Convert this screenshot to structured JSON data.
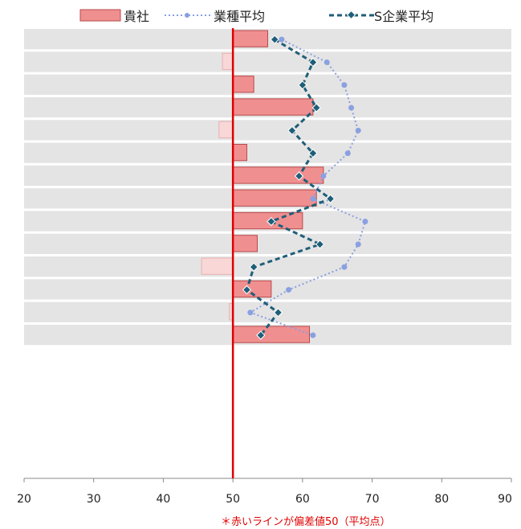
{
  "chart_data": {
    "type": "bar",
    "orientation": "horizontal",
    "xlim": [
      20,
      90
    ],
    "x_ticks": [
      "20",
      "30",
      "40",
      "50",
      "60",
      "70",
      "80",
      "90"
    ],
    "baseline": 50,
    "rows": 14,
    "legend": [
      "貴社",
      "業種平均",
      "S企業平均"
    ],
    "series": [
      {
        "name": "貴社",
        "kind": "bar",
        "values": [
          55.0,
          48.5,
          53.0,
          61.5,
          48.0,
          52.0,
          63.0,
          62.0,
          60.0,
          53.5,
          45.5,
          55.5,
          49.5,
          61.0
        ]
      },
      {
        "name": "業種平均",
        "kind": "dotted-line",
        "values": [
          57.0,
          63.5,
          66.0,
          67.0,
          68.0,
          66.5,
          63.0,
          61.5,
          69.0,
          68.0,
          66.0,
          58.0,
          52.5,
          61.5
        ]
      },
      {
        "name": "S企業平均",
        "kind": "dashed-line",
        "values": [
          56.0,
          61.5,
          60.0,
          62.0,
          58.5,
          61.5,
          59.5,
          64.0,
          55.5,
          62.5,
          53.0,
          52.0,
          56.5,
          54.0
        ]
      }
    ],
    "colors": {
      "bar_fill": "#f08f90",
      "bar_fill_light": "#f9d7d7",
      "bar_stroke": "#b84a4a",
      "industry_line": "#8aa0e0",
      "s_line": "#1f5e78",
      "baseline": "#e00000",
      "row_bg": "#e4e4e4"
    },
    "note": "＊赤いラインが偏差値50（平均点）"
  }
}
